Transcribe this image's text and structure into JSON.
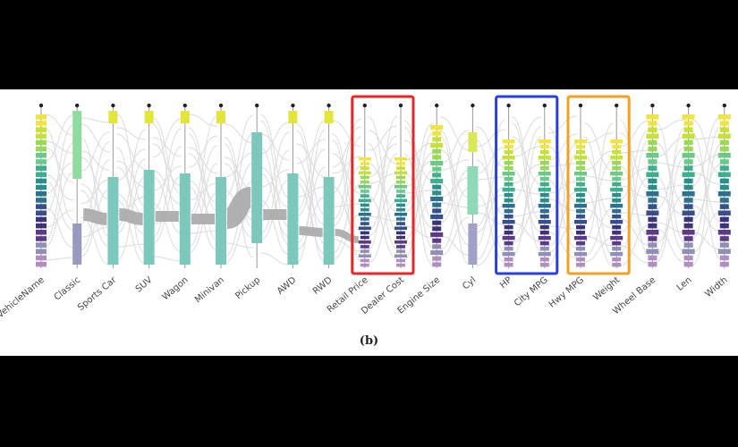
{
  "chart_data": {
    "type": "parallel-sets",
    "caption": "(b)",
    "axes": [
      {
        "label": "VehicleName"
      },
      {
        "label": "Classic"
      },
      {
        "label": "Sports Car"
      },
      {
        "label": "SUV"
      },
      {
        "label": "Wagon"
      },
      {
        "label": "Minivan"
      },
      {
        "label": "Pickup"
      },
      {
        "label": "AWD"
      },
      {
        "label": "RWD"
      },
      {
        "label": "Retail Price"
      },
      {
        "label": "Dealer Cost"
      },
      {
        "label": "Engine Size"
      },
      {
        "label": "Cyl"
      },
      {
        "label": "HP"
      },
      {
        "label": "City MPG"
      },
      {
        "label": "Hwy MPG"
      },
      {
        "label": "Weight"
      },
      {
        "label": "Wheel Base"
      },
      {
        "label": "Len"
      },
      {
        "label": "Width"
      }
    ],
    "highlight_groups": [
      {
        "axes": [
          "Retail Price",
          "Dealer Cost"
        ],
        "color": "#e8262a"
      },
      {
        "axes": [
          "HP",
          "City MPG"
        ],
        "color": "#2b3fe0"
      },
      {
        "axes": [
          "Hwy MPG",
          "Weight"
        ],
        "color": "#f5a024"
      }
    ],
    "palette": [
      "#f0e442",
      "#c8e03a",
      "#9ad85a",
      "#6cc98a",
      "#3fae8c",
      "#2a8f8a",
      "#2d7090",
      "#35508c",
      "#3c3478",
      "#5b3a8a",
      "#8f8fb8",
      "#b08fc0"
    ]
  }
}
